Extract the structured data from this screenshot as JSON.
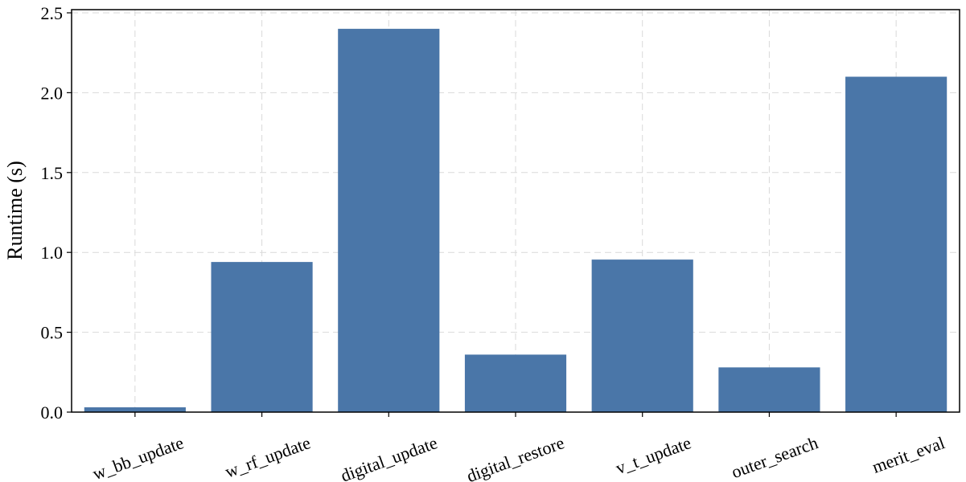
{
  "chart_data": {
    "type": "bar",
    "categories": [
      "w_bb_update",
      "w_rf_update",
      "digital_update",
      "digital_restore",
      "v_t_update",
      "outer_search",
      "merit_eval"
    ],
    "values": [
      0.03,
      0.94,
      2.4,
      0.36,
      0.955,
      0.28,
      2.1
    ],
    "title": "",
    "xlabel": "",
    "ylabel": "Runtime (s)",
    "ylim": [
      0,
      2.52
    ],
    "yticks": [
      0.0,
      0.5,
      1.0,
      1.5,
      2.0,
      2.5
    ],
    "ytick_labels": [
      "0.0",
      "0.5",
      "1.0",
      "1.5",
      "2.0",
      "2.5"
    ],
    "grid": true,
    "bar_color": "#4a76a8"
  }
}
